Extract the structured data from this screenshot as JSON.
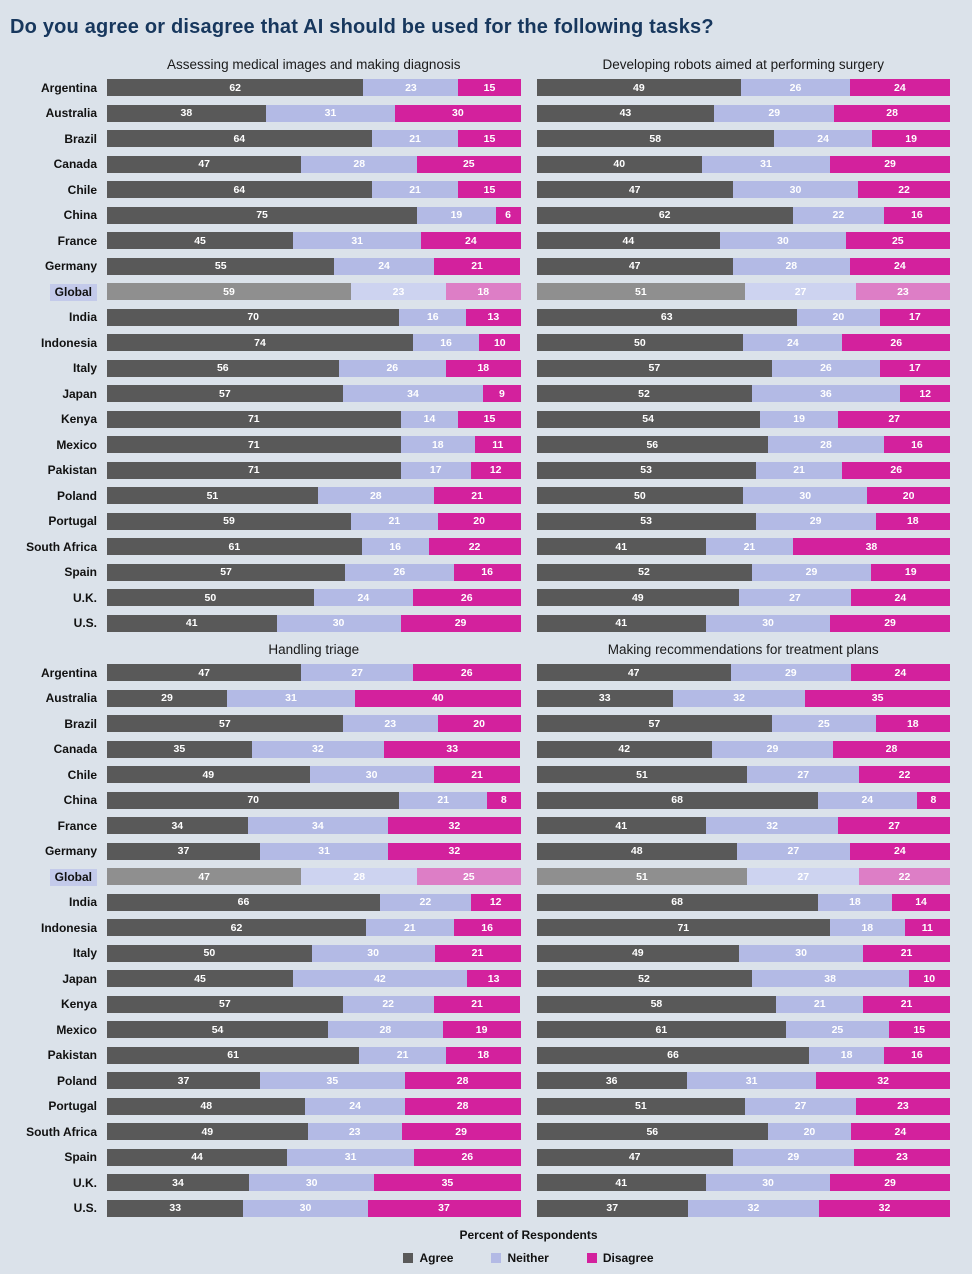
{
  "page": {
    "title": "Do you agree or disagree that AI should be used for the following tasks?"
  },
  "chart_data": {
    "type": "bar",
    "subtype": "horizontal-stacked-100pct",
    "title": "Do you agree or disagree that AI should be used for the following tasks?",
    "xlabel": "Percent of Respondents",
    "legend": [
      "Agree",
      "Neither",
      "Disagree"
    ],
    "legend_position": "bottom",
    "grid": false,
    "xlim": [
      0,
      100
    ],
    "highlight_category": "Global",
    "colors": {
      "series": [
        "#595959",
        "#b3bae5",
        "#d3219d"
      ],
      "global_series": [
        "#8f8f8f",
        "#cdd3f0",
        "#dd7ec6"
      ],
      "highlight_label_bg": "#c3caea",
      "background": "#dbe2ea",
      "title_color": "#17375d"
    },
    "categories": [
      "Argentina",
      "Australia",
      "Brazil",
      "Canada",
      "Chile",
      "China",
      "France",
      "Germany",
      "Global",
      "India",
      "Indonesia",
      "Italy",
      "Japan",
      "Kenya",
      "Mexico",
      "Pakistan",
      "Poland",
      "Portugal",
      "South Africa",
      "Spain",
      "U.K.",
      "U.S."
    ],
    "panels": [
      {
        "title": "Assessing medical images and making diagnosis",
        "series": [
          {
            "name": "Agree",
            "values": [
              62,
              38,
              64,
              47,
              64,
              75,
              45,
              55,
              59,
              70,
              74,
              56,
              57,
              71,
              71,
              71,
              51,
              59,
              61,
              57,
              50,
              41
            ]
          },
          {
            "name": "Neither",
            "values": [
              23,
              31,
              21,
              28,
              21,
              19,
              31,
              24,
              23,
              16,
              16,
              26,
              34,
              14,
              18,
              17,
              28,
              21,
              16,
              26,
              24,
              30
            ]
          },
          {
            "name": "Disagree",
            "values": [
              15,
              30,
              15,
              25,
              15,
              6,
              24,
              21,
              18,
              13,
              10,
              18,
              9,
              15,
              11,
              12,
              21,
              20,
              22,
              16,
              26,
              29
            ]
          }
        ]
      },
      {
        "title": "Developing robots aimed at performing surgery",
        "series": [
          {
            "name": "Agree",
            "values": [
              49,
              43,
              58,
              40,
              47,
              62,
              44,
              47,
              51,
              63,
              50,
              57,
              52,
              54,
              56,
              53,
              50,
              53,
              41,
              52,
              49,
              41
            ]
          },
          {
            "name": "Neither",
            "values": [
              26,
              29,
              24,
              31,
              30,
              22,
              30,
              28,
              27,
              20,
              24,
              26,
              36,
              19,
              28,
              21,
              30,
              29,
              21,
              29,
              27,
              30
            ]
          },
          {
            "name": "Disagree",
            "values": [
              24,
              28,
              19,
              29,
              22,
              16,
              25,
              24,
              23,
              17,
              26,
              17,
              12,
              27,
              16,
              26,
              20,
              18,
              38,
              19,
              24,
              29
            ]
          }
        ]
      },
      {
        "title": "Handling triage",
        "series": [
          {
            "name": "Agree",
            "values": [
              47,
              29,
              57,
              35,
              49,
              70,
              34,
              37,
              47,
              66,
              62,
              50,
              45,
              57,
              54,
              61,
              37,
              48,
              49,
              44,
              34,
              33
            ]
          },
          {
            "name": "Neither",
            "values": [
              27,
              31,
              23,
              32,
              30,
              21,
              34,
              31,
              28,
              22,
              21,
              30,
              42,
              22,
              28,
              21,
              35,
              24,
              23,
              31,
              30,
              30
            ]
          },
          {
            "name": "Disagree",
            "values": [
              26,
              40,
              20,
              33,
              21,
              8,
              32,
              32,
              25,
              12,
              16,
              21,
              13,
              21,
              19,
              18,
              28,
              28,
              29,
              26,
              35,
              37
            ]
          }
        ]
      },
      {
        "title": "Making recommendations for treatment plans",
        "series": [
          {
            "name": "Agree",
            "values": [
              47,
              33,
              57,
              42,
              51,
              68,
              41,
              48,
              51,
              68,
              71,
              49,
              52,
              58,
              61,
              66,
              36,
              51,
              56,
              47,
              41,
              37
            ]
          },
          {
            "name": "Neither",
            "values": [
              29,
              32,
              25,
              29,
              27,
              24,
              32,
              27,
              27,
              18,
              18,
              30,
              38,
              21,
              25,
              18,
              31,
              27,
              20,
              29,
              30,
              32
            ]
          },
          {
            "name": "Disagree",
            "values": [
              24,
              35,
              18,
              28,
              22,
              8,
              27,
              24,
              22,
              14,
              11,
              21,
              10,
              21,
              15,
              16,
              32,
              23,
              24,
              23,
              29,
              32
            ]
          }
        ]
      }
    ]
  }
}
